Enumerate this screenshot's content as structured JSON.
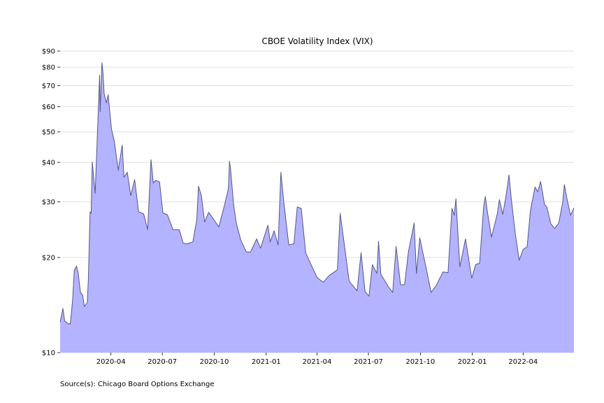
{
  "chart_data": {
    "type": "area",
    "title": "CBOE Volatility Index (VIX)",
    "xlabel": "",
    "ylabel": "",
    "y_scale": "log",
    "ylim": [
      10,
      90
    ],
    "xlim": [
      "2020-01-02",
      "2022-06-30"
    ],
    "grid": "horizontal",
    "y_ticks": [
      10,
      20,
      30,
      40,
      50,
      60,
      70,
      80,
      90
    ],
    "y_tick_labels": [
      "$10",
      "$20",
      "$30",
      "$40",
      "$50",
      "$60",
      "$70",
      "$80",
      "$90"
    ],
    "x_ticks": [
      "2020-04-01",
      "2020-07-01",
      "2020-10-01",
      "2021-01-01",
      "2021-04-01",
      "2021-07-01",
      "2021-10-01",
      "2022-01-01",
      "2022-04-01"
    ],
    "x_tick_labels": [
      "2020-04",
      "2020-07",
      "2020-10",
      "2021-01",
      "2021-04",
      "2021-07",
      "2021-10",
      "2022-01",
      "2022-04"
    ],
    "colors": {
      "fill": "#b3b3ff",
      "line": "#55558a",
      "grid": "#d9d9d9"
    },
    "series": [
      {
        "x": [
          "2020-01-02",
          "2020-01-07",
          "2020-01-10",
          "2020-01-15",
          "2020-01-20",
          "2020-01-24",
          "2020-01-27",
          "2020-01-31",
          "2020-02-03",
          "2020-02-07",
          "2020-02-11",
          "2020-02-14",
          "2020-02-19",
          "2020-02-21",
          "2020-02-24",
          "2020-02-26",
          "2020-02-28",
          "2020-03-04",
          "2020-03-09",
          "2020-03-12",
          "2020-03-13",
          "2020-03-16",
          "2020-03-18",
          "2020-03-20",
          "2020-03-24",
          "2020-03-27",
          "2020-04-02",
          "2020-04-07",
          "2020-04-14",
          "2020-04-21",
          "2020-04-24",
          "2020-04-30",
          "2020-05-06",
          "2020-05-13",
          "2020-05-20",
          "2020-05-29",
          "2020-06-05",
          "2020-06-11",
          "2020-06-15",
          "2020-06-19",
          "2020-06-26",
          "2020-07-02",
          "2020-07-10",
          "2020-07-20",
          "2020-07-31",
          "2020-08-07",
          "2020-08-14",
          "2020-08-24",
          "2020-08-31",
          "2020-09-03",
          "2020-09-08",
          "2020-09-14",
          "2020-09-21",
          "2020-09-30",
          "2020-10-09",
          "2020-10-19",
          "2020-10-26",
          "2020-10-28",
          "2020-10-30",
          "2020-11-04",
          "2020-11-09",
          "2020-11-17",
          "2020-11-27",
          "2020-12-04",
          "2020-12-15",
          "2020-12-22",
          "2021-01-04",
          "2021-01-08",
          "2021-01-15",
          "2021-01-22",
          "2021-01-27",
          "2021-02-01",
          "2021-02-10",
          "2021-02-19",
          "2021-02-25",
          "2021-03-04",
          "2021-03-12",
          "2021-03-22",
          "2021-04-01",
          "2021-04-12",
          "2021-04-22",
          "2021-05-07",
          "2021-05-12",
          "2021-05-19",
          "2021-05-28",
          "2021-06-11",
          "2021-06-18",
          "2021-06-25",
          "2021-07-02",
          "2021-07-08",
          "2021-07-16",
          "2021-07-19",
          "2021-07-23",
          "2021-08-06",
          "2021-08-13",
          "2021-08-19",
          "2021-08-27",
          "2021-09-03",
          "2021-09-10",
          "2021-09-20",
          "2021-09-24",
          "2021-09-30",
          "2021-10-04",
          "2021-10-11",
          "2021-10-20",
          "2021-10-29",
          "2021-11-10",
          "2021-11-19",
          "2021-11-26",
          "2021-11-30",
          "2021-12-03",
          "2021-12-10",
          "2021-12-20",
          "2021-12-31",
          "2022-01-07",
          "2022-01-14",
          "2022-01-21",
          "2022-01-24",
          "2022-01-28",
          "2022-02-04",
          "2022-02-14",
          "2022-02-18",
          "2022-02-24",
          "2022-03-01",
          "2022-03-07",
          "2022-03-11",
          "2022-03-18",
          "2022-03-25",
          "2022-04-01",
          "2022-04-08",
          "2022-04-14",
          "2022-04-22",
          "2022-04-27",
          "2022-05-02",
          "2022-05-09",
          "2022-05-13",
          "2022-05-20",
          "2022-05-27",
          "2022-06-03",
          "2022-06-10",
          "2022-06-13",
          "2022-06-17",
          "2022-06-24",
          "2022-06-30"
        ],
        "y": [
          12.5,
          13.8,
          12.6,
          12.4,
          12.3,
          14.6,
          18.2,
          18.8,
          17.9,
          15.5,
          15.2,
          14.0,
          14.4,
          17.1,
          27.9,
          27.6,
          40.1,
          31.9,
          54.5,
          75.5,
          57.8,
          82.7,
          76.4,
          66.0,
          61.7,
          65.5,
          50.9,
          46.7,
          37.8,
          45.4,
          35.9,
          37.2,
          31.4,
          35.3,
          27.9,
          27.5,
          24.5,
          40.8,
          34.4,
          35.1,
          34.7,
          27.7,
          27.3,
          24.5,
          24.5,
          22.2,
          22.1,
          22.4,
          26.4,
          33.6,
          31.5,
          25.9,
          27.8,
          26.4,
          25.0,
          29.2,
          33.0,
          40.3,
          38.0,
          29.6,
          25.7,
          22.7,
          20.8,
          20.8,
          22.9,
          21.4,
          25.3,
          22.4,
          24.3,
          21.9,
          37.2,
          30.2,
          21.9,
          22.1,
          28.9,
          28.6,
          20.7,
          18.9,
          17.3,
          16.7,
          17.5,
          18.3,
          27.6,
          22.2,
          16.8,
          15.7,
          20.7,
          15.6,
          15.1,
          19.0,
          17.8,
          22.5,
          17.7,
          16.1,
          15.5,
          21.7,
          16.4,
          16.4,
          20.9,
          25.7,
          17.8,
          23.1,
          21.3,
          18.6,
          15.5,
          16.3,
          18.0,
          17.9,
          28.6,
          27.2,
          30.7,
          18.7,
          22.9,
          17.2,
          19.0,
          19.2,
          28.9,
          31.2,
          27.7,
          23.2,
          27.4,
          30.5,
          27.4,
          30.8,
          36.5,
          30.8,
          23.9,
          19.6,
          21.2,
          21.6,
          28.2,
          33.4,
          32.3,
          34.8,
          29.4,
          28.9,
          25.6,
          24.7,
          25.7,
          29.8,
          34.0,
          31.1,
          27.2,
          28.7
        ]
      }
    ]
  },
  "source": "Source(s): Chicago Board Options Exchange"
}
